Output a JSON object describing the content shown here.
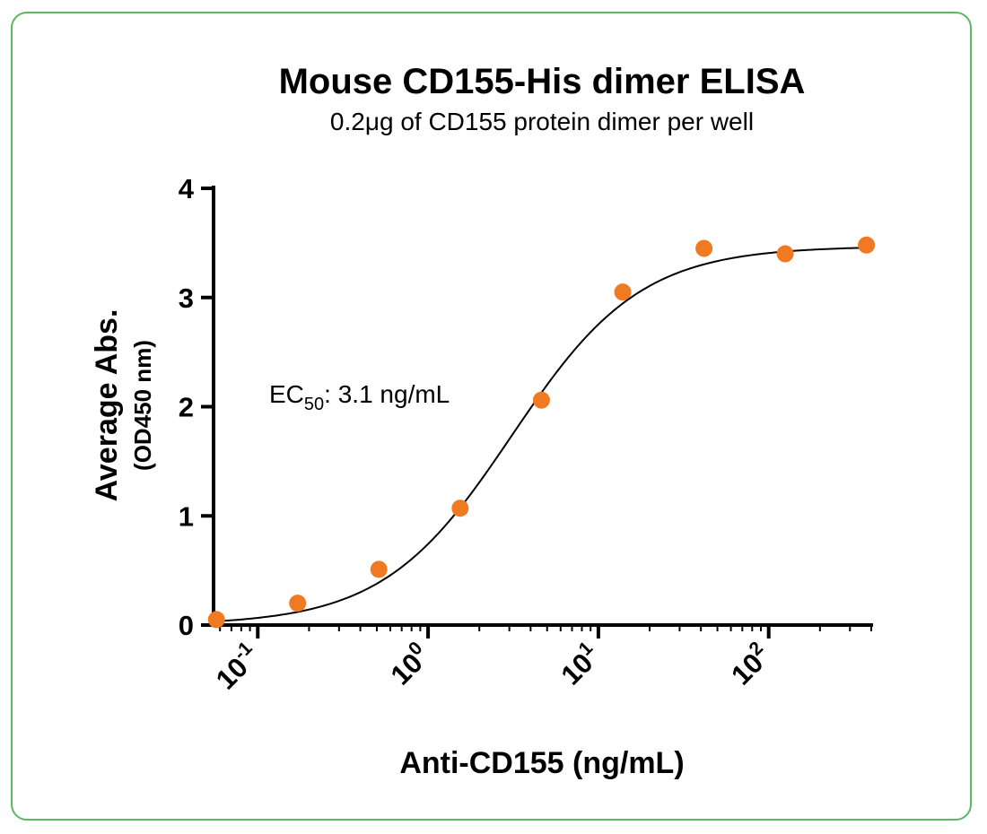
{
  "chart_data": {
    "type": "scatter",
    "title": "Mouse CD155-His dimer ELISA",
    "subtitle": "0.2μg of CD155 protein dimer per well",
    "xlabel": "Anti-CD155 (ng/mL)",
    "ylabel": "Average Abs.",
    "ylabel_sub": "(OD450 nm)",
    "x_scale": "log",
    "xlim": [
      0.055,
      410
    ],
    "ylim": [
      0,
      4
    ],
    "y_ticks": [
      0,
      1,
      2,
      3,
      4
    ],
    "x_ticks": [
      0.1,
      1,
      10,
      100
    ],
    "x_tick_base": [
      "10",
      "10",
      "10",
      "10"
    ],
    "x_tick_exp": [
      "-1",
      "0",
      "1",
      "2"
    ],
    "annotation": {
      "main": "EC",
      "sub": "50",
      "rest": ": 3.1 ng/mL"
    },
    "point_color": "#f07a22",
    "curve_color": "#000000",
    "x": [
      0.0572,
      0.1715,
      0.514,
      1.543,
      4.63,
      13.9,
      41.7,
      125,
      375
    ],
    "y": [
      0.05,
      0.2,
      0.51,
      1.07,
      2.06,
      3.05,
      3.45,
      3.4,
      3.48
    ],
    "fit": {
      "model": "4PL",
      "bottom": 0.0,
      "top": 3.47,
      "ec50": 3.1,
      "hill": 1.15
    },
    "grid": false,
    "legend": "none"
  }
}
